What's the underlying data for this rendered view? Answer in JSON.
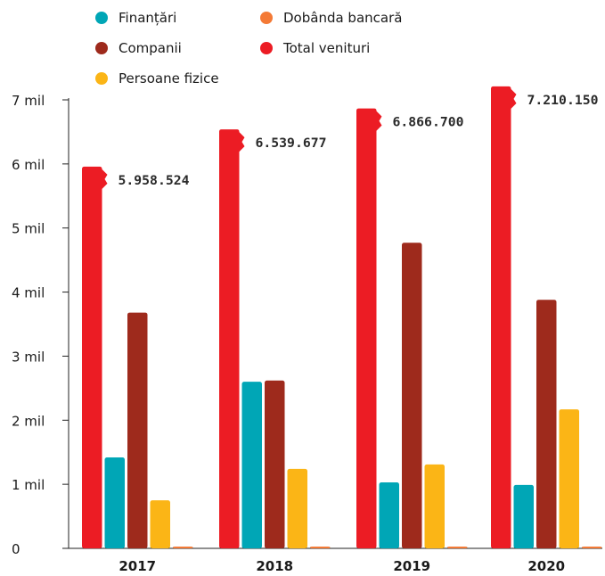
{
  "chart_data": {
    "type": "bar",
    "categories": [
      "2017",
      "2018",
      "2019",
      "2020"
    ],
    "series": [
      {
        "name": "Total venituri",
        "color": "#ec1c24",
        "values": [
          5958524,
          6539677,
          6866700,
          7210150
        ]
      },
      {
        "name": "Finanțări",
        "color": "#00a6b6",
        "values": [
          1420000,
          2600000,
          1030000,
          990000
        ]
      },
      {
        "name": "Companii",
        "color": "#9e2a1c",
        "values": [
          3680000,
          2620000,
          4770000,
          3880000
        ]
      },
      {
        "name": "Persoane fizice",
        "color": "#fbb516",
        "values": [
          750000,
          1240000,
          1310000,
          2170000
        ]
      },
      {
        "name": "Dobânda bancară",
        "color": "#f47a36",
        "values": [
          15000,
          25000,
          25000,
          25000
        ]
      }
    ],
    "total_labels": [
      "5.958.524",
      "6.539.677",
      "6.866.700",
      "7.210.150"
    ],
    "yticks": [
      {
        "value": 0,
        "label": "0"
      },
      {
        "value": 1000000,
        "label": "1 mil"
      },
      {
        "value": 2000000,
        "label": "2 mil"
      },
      {
        "value": 3000000,
        "label": "3 mil"
      },
      {
        "value": 4000000,
        "label": "4 mil"
      },
      {
        "value": 5000000,
        "label": "5 mil"
      },
      {
        "value": 6000000,
        "label": "6 mil"
      },
      {
        "value": 7000000,
        "label": "7 mil"
      }
    ],
    "ylim": [
      0,
      7000000
    ],
    "grid": false,
    "legend": {
      "position": "top",
      "entries": [
        "Finanțări",
        "Dobânda bancară",
        "Companii",
        "Total venituri",
        "Persoane fizice"
      ]
    }
  }
}
